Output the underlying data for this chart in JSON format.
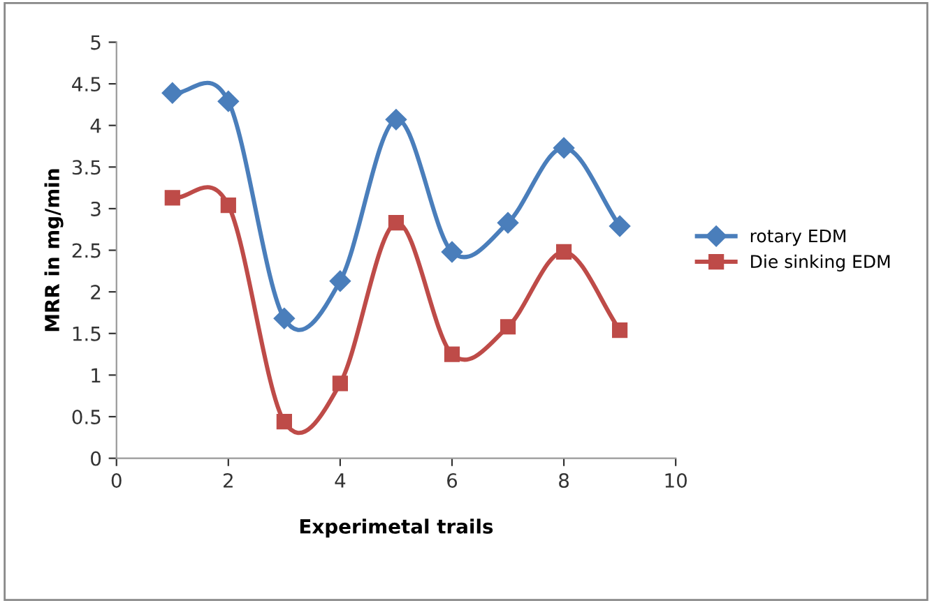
{
  "chart_data": {
    "type": "line",
    "xlabel": "Experimetal trails",
    "ylabel": "MRR in mg/min",
    "x": [
      1,
      2,
      3,
      4,
      5,
      6,
      7,
      8,
      9
    ],
    "series": [
      {
        "name": "rotary EDM",
        "color": "#4a7ebb",
        "marker": "diamond",
        "values": [
          4.39,
          4.29,
          1.68,
          2.13,
          4.07,
          2.48,
          2.83,
          3.73,
          2.79
        ]
      },
      {
        "name": "Die sinking EDM",
        "color": "#be4b48",
        "marker": "square",
        "values": [
          3.13,
          3.04,
          0.44,
          0.9,
          2.83,
          1.25,
          1.58,
          2.48,
          1.54
        ]
      }
    ],
    "xlim": [
      0,
      10
    ],
    "xticks": [
      0,
      2,
      4,
      6,
      8,
      10
    ],
    "ylim": [
      0,
      5
    ],
    "yticks": [
      0,
      0.5,
      1,
      1.5,
      2,
      2.5,
      3,
      3.5,
      4,
      4.5,
      5
    ],
    "grid": false,
    "legend": "right",
    "line_style": "solid"
  }
}
